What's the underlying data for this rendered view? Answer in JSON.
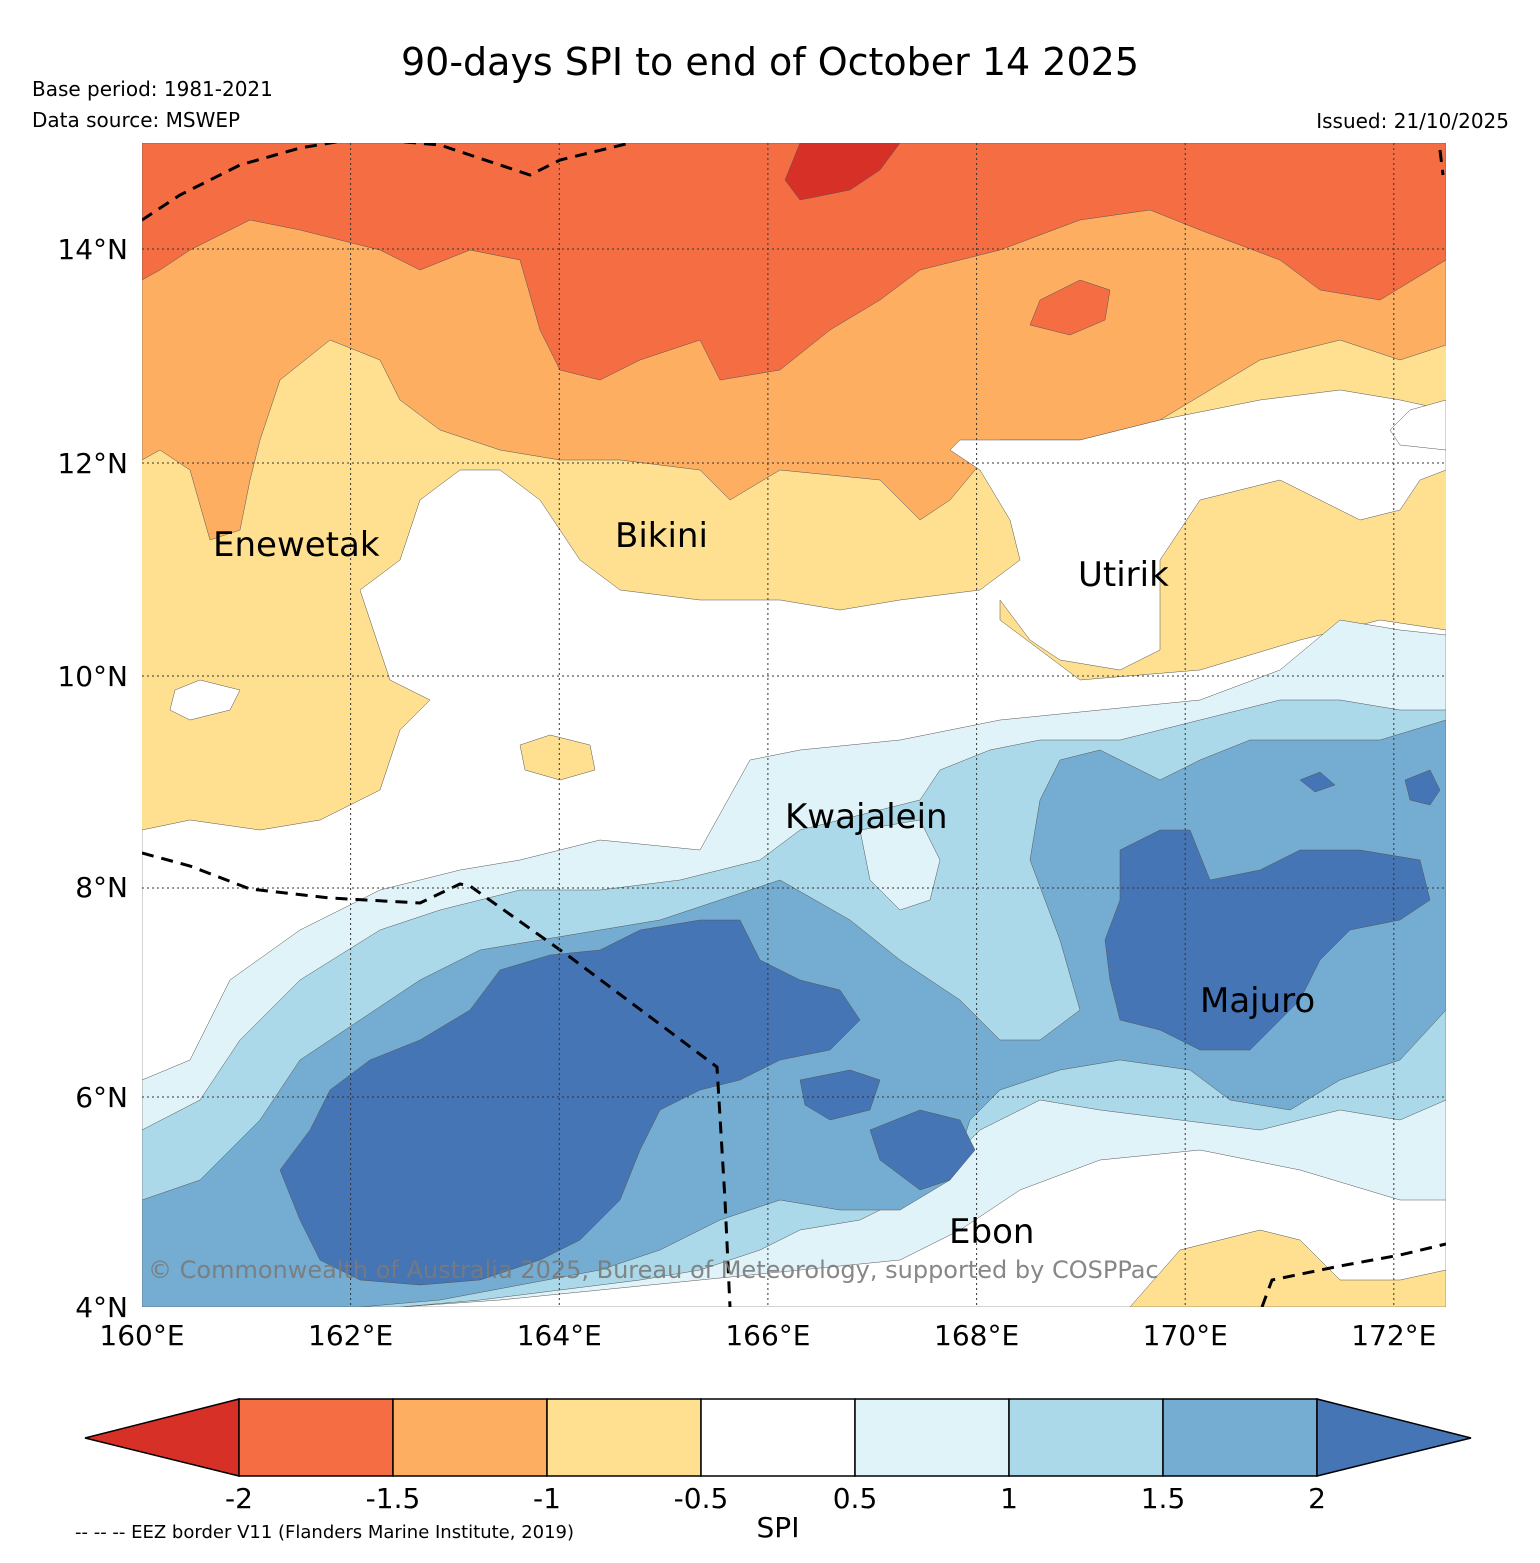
{
  "header": {
    "title": "90-days SPI to end of October 14 2025",
    "base_period": "Base period: 1981-2021",
    "data_source": "Data source: MSWEP",
    "issued": "Issued: 21/10/2025"
  },
  "map": {
    "lon_range": [
      160,
      172.5
    ],
    "lat_range": [
      4,
      15
    ],
    "x_ticks": [
      "160°E",
      "162°E",
      "164°E",
      "166°E",
      "168°E",
      "170°E",
      "172°E"
    ],
    "y_ticks": [
      "4°N",
      "6°N",
      "8°N",
      "10°N",
      "12°N",
      "14°N"
    ],
    "places": [
      "Enewetak",
      "Bikini",
      "Utirik",
      "Kwajalein",
      "Majuro",
      "Ebon"
    ],
    "copyright": "© Commonwealth of Australia 2025, Bureau of Meteorology, supported by COSPPac"
  },
  "legend": {
    "label": "SPI",
    "ticks": [
      "-2",
      "-1.5",
      "-1",
      "-0.5",
      "0.5",
      "1",
      "1.5",
      "2"
    ],
    "colors": {
      "below_-2": "#d73027",
      "-2_-1.5": "#f46d43",
      "-1.5_-1": "#fdae61",
      "-1_-0.5": "#fee090",
      "-0.5_0.5": "#ffffff",
      "0.5_1": "#e0f3f8",
      "1_1.5": "#abd9e9",
      "1.5_2": "#74add1",
      "above_2": "#4575b4"
    },
    "eez_note": "-- -- -- EEZ border V11 (Flanders Marine Institute, 2019)"
  }
}
